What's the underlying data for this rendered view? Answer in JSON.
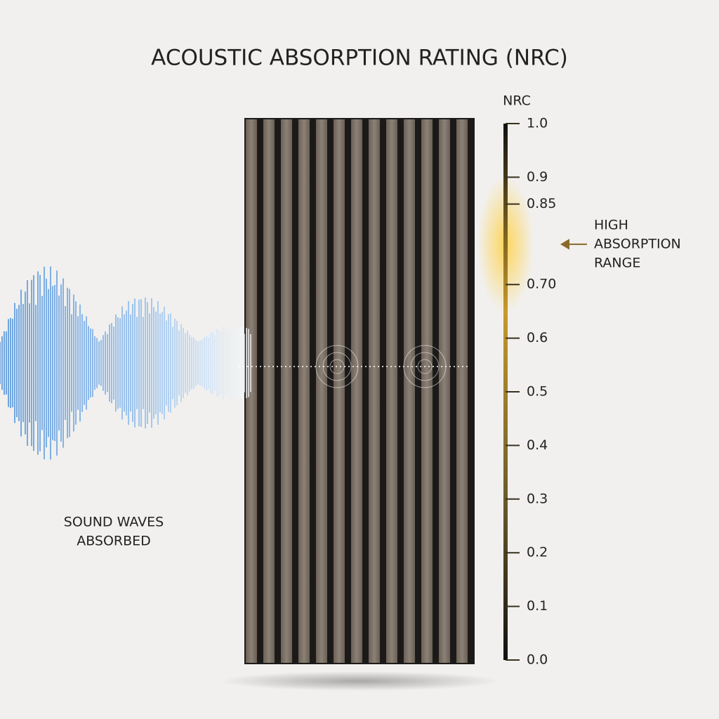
{
  "header": {
    "title": "ACOUSTIC ABSORPTION RATING (NRC)"
  },
  "caption": {
    "lines": [
      "SOUND WAVES",
      "ABSORBED"
    ]
  },
  "scale": {
    "label": "NRC",
    "lim": [
      0,
      1
    ],
    "ticks": [
      {
        "value": 0,
        "label": "0.0"
      },
      0.1,
      0.2,
      0.3,
      0.4,
      0.5,
      0.6,
      {
        "value": 0.7,
        "label": "0.70"
      },
      0.85,
      0.9,
      {
        "value": 1,
        "label": "1.0"
      }
    ],
    "highlight": {
      "range": [
        0.7,
        0.85
      ],
      "lines": [
        "HIGH",
        "ABSORPTION",
        "RANGE"
      ]
    }
  }
}
